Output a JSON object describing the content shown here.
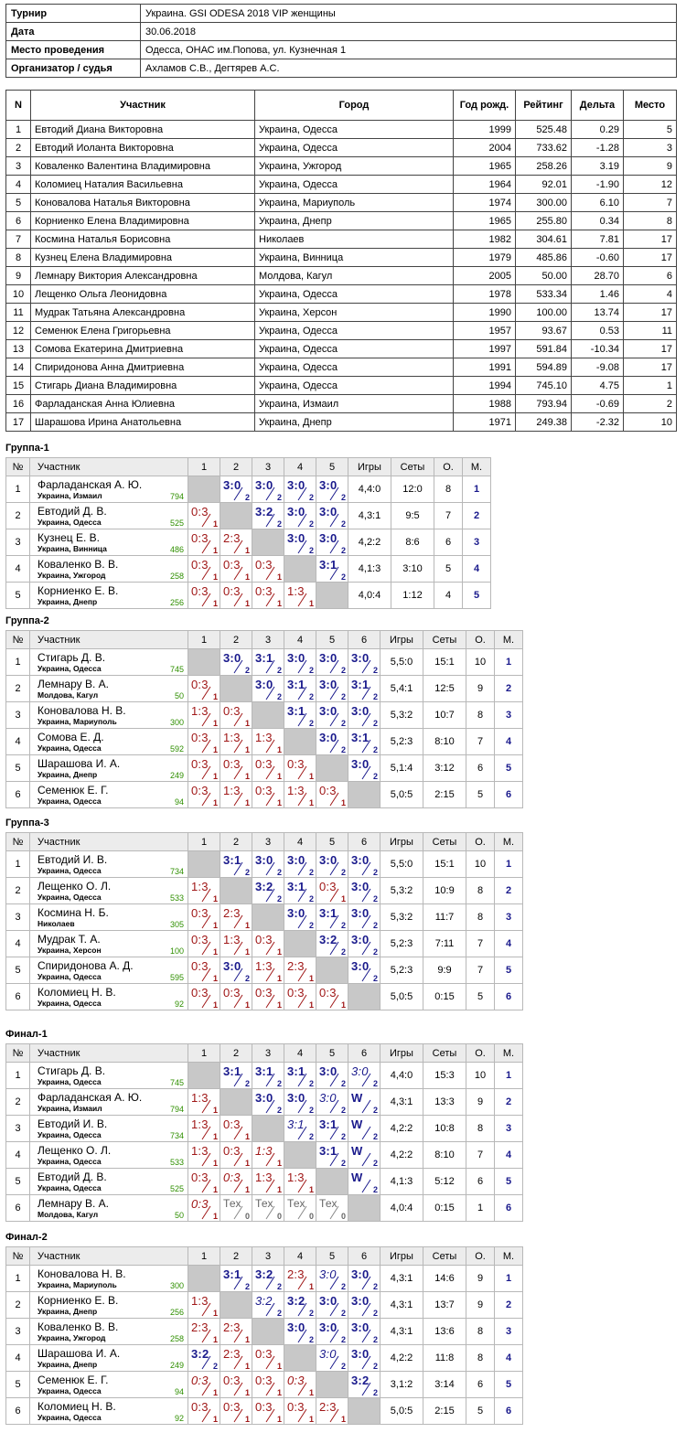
{
  "info": [
    {
      "k": "Турнир",
      "v": "Украина. GSI ODESA 2018 VIP женщины"
    },
    {
      "k": "Дата",
      "v": "30.06.2018"
    },
    {
      "k": "Место проведения",
      "v": "Одесса, ОНАС им.Попова, ул. Кузнечная 1"
    },
    {
      "k": "Организатор / судья",
      "v": "Ахламов С.В., Дегтярев А.С."
    }
  ],
  "participants": {
    "headers": [
      "N",
      "Участник",
      "Город",
      "Год рожд.",
      "Рейтинг",
      "Дельта",
      "Место"
    ],
    "rows": [
      [
        "1",
        "Евтодий Диана Викторовна",
        "Украина, Одесса",
        "1999",
        "525.48",
        "0.29",
        "5"
      ],
      [
        "2",
        "Евтодий Иоланта Викторовна",
        "Украина, Одесса",
        "2004",
        "733.62",
        "-1.28",
        "3"
      ],
      [
        "3",
        "Коваленко Валентина Владимировна",
        "Украина, Ужгород",
        "1965",
        "258.26",
        "3.19",
        "9"
      ],
      [
        "4",
        "Коломиец Наталия Васильевна",
        "Украина, Одесса",
        "1964",
        "92.01",
        "-1.90",
        "12"
      ],
      [
        "5",
        "Коновалова Наталья Викторовна",
        "Украина, Мариуполь",
        "1974",
        "300.00",
        "6.10",
        "7"
      ],
      [
        "6",
        "Корниенко Елена Владимировна",
        "Украина, Днепр",
        "1965",
        "255.80",
        "0.34",
        "8"
      ],
      [
        "7",
        "Космина Наталья Борисовна",
        "Николаев",
        "1982",
        "304.61",
        "7.81",
        "17"
      ],
      [
        "8",
        "Кузнец Елена Владимировна",
        "Украина, Винница",
        "1979",
        "485.86",
        "-0.60",
        "17"
      ],
      [
        "9",
        "Лемнару Виктория Александровна",
        "Молдова, Кагул",
        "2005",
        "50.00",
        "28.70",
        "6"
      ],
      [
        "10",
        "Лещенко Ольга Леонидовна",
        "Украина, Одесса",
        "1978",
        "533.34",
        "1.46",
        "4"
      ],
      [
        "11",
        "Мудрак Татьяна Александровна",
        "Украина, Херсон",
        "1990",
        "100.00",
        "13.74",
        "17"
      ],
      [
        "12",
        "Семенюк Елена Григорьевна",
        "Украина, Одесса",
        "1957",
        "93.67",
        "0.53",
        "11"
      ],
      [
        "13",
        "Сомова Екатерина Дмитриевна",
        "Украина, Одесса",
        "1997",
        "591.84",
        "-10.34",
        "17"
      ],
      [
        "14",
        "Спиридонова Анна Дмитриевна",
        "Украина, Одесса",
        "1991",
        "594.89",
        "-9.08",
        "17"
      ],
      [
        "15",
        "Стигарь Диана Владимировна",
        "Украина, Одесса",
        "1994",
        "745.10",
        "4.75",
        "1"
      ],
      [
        "16",
        "Фарладанская Анна Юлиевна",
        "Украина, Измаил",
        "1988",
        "793.94",
        "-0.69",
        "2"
      ],
      [
        "17",
        "Шарашова Ирина Анатольевна",
        "Украина, Днепр",
        "1971",
        "249.38",
        "-2.32",
        "10"
      ]
    ]
  },
  "group_headers": {
    "no": "№",
    "player": "Участник",
    "games": "Игры",
    "sets": "Сеты",
    "points": "О.",
    "place": "М."
  },
  "groups": [
    {
      "title": "Группа-1",
      "players": [
        {
          "name": "Фарладанская А. Ю.",
          "city": "Украина, Измаил",
          "rating": "794",
          "results": [
            null,
            "W3:0|2",
            "W3:0|2",
            "W3:0|2",
            "W3:0|2"
          ],
          "games": "4,4:0",
          "sets": "12:0",
          "points": "8",
          "place": "1"
        },
        {
          "name": "Евтодий Д. В.",
          "city": "Украина, Одесса",
          "rating": "525",
          "results": [
            "L0:3|1",
            null,
            "W3:2|2",
            "W3:0|2",
            "W3:0|2"
          ],
          "games": "4,3:1",
          "sets": "9:5",
          "points": "7",
          "place": "2"
        },
        {
          "name": "Кузнец Е. В.",
          "city": "Украина, Винница",
          "rating": "486",
          "results": [
            "L0:3|1",
            "L2:3|1",
            null,
            "W3:0|2",
            "W3:0|2"
          ],
          "games": "4,2:2",
          "sets": "8:6",
          "points": "6",
          "place": "3"
        },
        {
          "name": "Коваленко В. В.",
          "city": "Украина, Ужгород",
          "rating": "258",
          "results": [
            "L0:3|1",
            "L0:3|1",
            "L0:3|1",
            null,
            "W3:1|2"
          ],
          "games": "4,1:3",
          "sets": "3:10",
          "points": "5",
          "place": "4"
        },
        {
          "name": "Корниенко Е. В.",
          "city": "Украина, Днепр",
          "rating": "256",
          "results": [
            "L0:3|1",
            "L0:3|1",
            "L0:3|1",
            "L1:3|1",
            null
          ],
          "games": "4,0:4",
          "sets": "1:12",
          "points": "4",
          "place": "5"
        }
      ]
    },
    {
      "title": "Группа-2",
      "players": [
        {
          "name": "Стигарь Д. В.",
          "city": "Украина, Одесса",
          "rating": "745",
          "results": [
            null,
            "W3:0|2",
            "W3:1|2",
            "W3:0|2",
            "W3:0|2",
            "W3:0|2"
          ],
          "games": "5,5:0",
          "sets": "15:1",
          "points": "10",
          "place": "1"
        },
        {
          "name": "Лемнару В. А.",
          "city": "Молдова, Кагул",
          "rating": "50",
          "results": [
            "L0:3|1",
            null,
            "W3:0|2",
            "W3:1|2",
            "W3:0|2",
            "W3:1|2"
          ],
          "games": "5,4:1",
          "sets": "12:5",
          "points": "9",
          "place": "2"
        },
        {
          "name": "Коновалова Н. В.",
          "city": "Украина, Мариуполь",
          "rating": "300",
          "results": [
            "L1:3|1",
            "L0:3|1",
            null,
            "W3:1|2",
            "W3:0|2",
            "W3:0|2"
          ],
          "games": "5,3:2",
          "sets": "10:7",
          "points": "8",
          "place": "3"
        },
        {
          "name": "Сомова Е. Д.",
          "city": "Украина, Одесса",
          "rating": "592",
          "results": [
            "L0:3|1",
            "L1:3|1",
            "L1:3|1",
            null,
            "W3:0|2",
            "W3:1|2"
          ],
          "games": "5,2:3",
          "sets": "8:10",
          "points": "7",
          "place": "4"
        },
        {
          "name": "Шарашова И. А.",
          "city": "Украина, Днепр",
          "rating": "249",
          "results": [
            "L0:3|1",
            "L0:3|1",
            "L0:3|1",
            "L0:3|1",
            null,
            "W3:0|2"
          ],
          "games": "5,1:4",
          "sets": "3:12",
          "points": "6",
          "place": "5"
        },
        {
          "name": "Семенюк Е. Г.",
          "city": "Украина, Одесса",
          "rating": "94",
          "results": [
            "L0:3|1",
            "L1:3|1",
            "L0:3|1",
            "L1:3|1",
            "L0:3|1",
            null
          ],
          "games": "5,0:5",
          "sets": "2:15",
          "points": "5",
          "place": "6"
        }
      ]
    },
    {
      "title": "Группа-3",
      "players": [
        {
          "name": "Евтодий И. В.",
          "city": "Украина, Одесса",
          "rating": "734",
          "results": [
            null,
            "W3:1|2",
            "W3:0|2",
            "W3:0|2",
            "W3:0|2",
            "W3:0|2"
          ],
          "games": "5,5:0",
          "sets": "15:1",
          "points": "10",
          "place": "1"
        },
        {
          "name": "Лещенко О. Л.",
          "city": "Украина, Одесса",
          "rating": "533",
          "results": [
            "L1:3|1",
            null,
            "W3:2|2",
            "W3:1|2",
            "L0:3|1",
            "W3:0|2"
          ],
          "games": "5,3:2",
          "sets": "10:9",
          "points": "8",
          "place": "2"
        },
        {
          "name": "Космина Н. Б.",
          "city": "Николаев",
          "rating": "305",
          "results": [
            "L0:3|1",
            "L2:3|1",
            null,
            "W3:0|2",
            "W3:1|2",
            "W3:0|2"
          ],
          "games": "5,3:2",
          "sets": "11:7",
          "points": "8",
          "place": "3"
        },
        {
          "name": "Мудрак Т. А.",
          "city": "Украина, Херсон",
          "rating": "100",
          "results": [
            "L0:3|1",
            "L1:3|1",
            "L0:3|1",
            null,
            "W3:2|2",
            "W3:0|2"
          ],
          "games": "5,2:3",
          "sets": "7:11",
          "points": "7",
          "place": "4"
        },
        {
          "name": "Спиридонова А. Д.",
          "city": "Украина, Одесса",
          "rating": "595",
          "results": [
            "L0:3|1",
            "W3:0|2",
            "L1:3|1",
            "L2:3|1",
            null,
            "W3:0|2"
          ],
          "games": "5,2:3",
          "sets": "9:9",
          "points": "7",
          "place": "5"
        },
        {
          "name": "Коломиец Н. В.",
          "city": "Украина, Одесса",
          "rating": "92",
          "results": [
            "L0:3|1",
            "L0:3|1",
            "L0:3|1",
            "L0:3|1",
            "L0:3|1",
            null
          ],
          "games": "5,0:5",
          "sets": "0:15",
          "points": "5",
          "place": "6"
        }
      ]
    },
    {
      "title": "Финал-1",
      "players": [
        {
          "name": "Стигарь Д. В.",
          "city": "Украина, Одесса",
          "rating": "745",
          "results": [
            null,
            "W3:1|2",
            "W3:1|2",
            "W3:1|2",
            "W3:0|2",
            "I3:0|2"
          ],
          "games": "4,4:0",
          "sets": "15:3",
          "points": "10",
          "place": "1"
        },
        {
          "name": "Фарладанская А. Ю.",
          "city": "Украина, Измаил",
          "rating": "794",
          "results": [
            "L1:3|1",
            null,
            "W3:0|2",
            "W3:0|2",
            "I3:0|2",
            "WW|2"
          ],
          "games": "4,3:1",
          "sets": "13:3",
          "points": "9",
          "place": "2"
        },
        {
          "name": "Евтодий И. В.",
          "city": "Украина, Одесса",
          "rating": "734",
          "results": [
            "L1:3|1",
            "L0:3|1",
            null,
            "I3:1|2",
            "W3:1|2",
            "WW|2"
          ],
          "games": "4,2:2",
          "sets": "10:8",
          "points": "8",
          "place": "3"
        },
        {
          "name": "Лещенко О. Л.",
          "city": "Украина, Одесса",
          "rating": "533",
          "results": [
            "L1:3|1",
            "L0:3|1",
            "J1:3|1",
            null,
            "W3:1|2",
            "WW|2"
          ],
          "games": "4,2:2",
          "sets": "8:10",
          "points": "7",
          "place": "4"
        },
        {
          "name": "Евтодий Д. В.",
          "city": "Украина, Одесса",
          "rating": "525",
          "results": [
            "L0:3|1",
            "J0:3|1",
            "L1:3|1",
            "L1:3|1",
            null,
            "WW|2"
          ],
          "games": "4,1:3",
          "sets": "5:12",
          "points": "6",
          "place": "5"
        },
        {
          "name": "Лемнару В. А.",
          "city": "Молдова, Кагул",
          "rating": "50",
          "results": [
            "J0:3|1",
            "TТех|0",
            "TТех|0",
            "TТех|0",
            "TТех|0",
            null
          ],
          "games": "4,0:4",
          "sets": "0:15",
          "points": "1",
          "place": "6"
        }
      ]
    },
    {
      "title": "Финал-2",
      "players": [
        {
          "name": "Коновалова Н. В.",
          "city": "Украина, Мариуполь",
          "rating": "300",
          "results": [
            null,
            "W3:1|2",
            "W3:2|2",
            "L2:3|1",
            "I3:0|2",
            "W3:0|2"
          ],
          "games": "4,3:1",
          "sets": "14:6",
          "points": "9",
          "place": "1"
        },
        {
          "name": "Корниенко Е. В.",
          "city": "Украина, Днепр",
          "rating": "256",
          "results": [
            "L1:3|1",
            null,
            "I3:2|2",
            "W3:2|2",
            "W3:0|2",
            "W3:0|2"
          ],
          "games": "4,3:1",
          "sets": "13:7",
          "points": "9",
          "place": "2"
        },
        {
          "name": "Коваленко В. В.",
          "city": "Украина, Ужгород",
          "rating": "258",
          "results": [
            "L2:3|1",
            "L2:3|1",
            null,
            "W3:0|2",
            "W3:0|2",
            "W3:0|2"
          ],
          "games": "4,3:1",
          "sets": "13:6",
          "points": "8",
          "place": "3"
        },
        {
          "name": "Шарашова И. А.",
          "city": "Украина, Днепр",
          "rating": "249",
          "results": [
            "W3:2|2",
            "L2:3|1",
            "L0:3|1",
            null,
            "I3:0|2",
            "W3:0|2"
          ],
          "games": "4,2:2",
          "sets": "11:8",
          "points": "8",
          "place": "4"
        },
        {
          "name": "Семенюк Е. Г.",
          "city": "Украина, Одесса",
          "rating": "94",
          "results": [
            "J0:3|1",
            "L0:3|1",
            "L0:3|1",
            "J0:3|1",
            null,
            "W3:2|2"
          ],
          "games": "3,1:2",
          "sets": "3:14",
          "points": "6",
          "place": "5"
        },
        {
          "name": "Коломиец Н. В.",
          "city": "Украина, Одесса",
          "rating": "92",
          "results": [
            "L0:3|1",
            "L0:3|1",
            "L0:3|1",
            "L0:3|1",
            "L2:3|1",
            null
          ],
          "games": "5,0:5",
          "sets": "2:15",
          "points": "5",
          "place": "6"
        }
      ]
    }
  ]
}
